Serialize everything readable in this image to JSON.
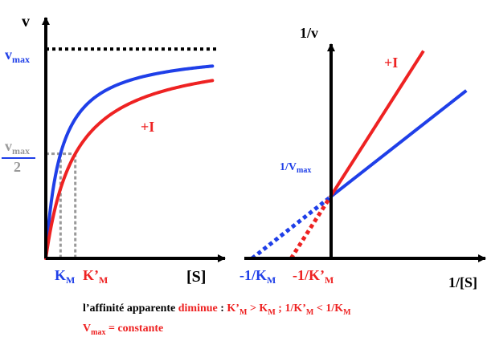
{
  "colors": {
    "inhibited": "#ee2222",
    "uninhibited": "#1f3fe8",
    "guide": "#999999",
    "axis": "#000000"
  },
  "chart_data": [
    {
      "type": "line",
      "title": "",
      "xlabel": "[S]",
      "ylabel": "v",
      "vmax_label": {
        "base": "v",
        "sub": "max"
      },
      "half_vmax_label": {
        "num_base": "v",
        "num_sub": "max",
        "den": "2"
      },
      "km_label": {
        "base": "K",
        "sub": "M"
      },
      "km_prime_label": {
        "base": "K’",
        "sub": "M"
      },
      "annotation": "+I",
      "vmax": 1.0,
      "km": 1.0,
      "km_prime": 2.0,
      "xlim": [
        0,
        11.5
      ],
      "ylim": [
        0,
        1.15
      ],
      "series": [
        {
          "color": "#1f3fe8",
          "km": 1.0,
          "vmax": 1.0,
          "x_end": 11.3
        },
        {
          "color": "#ee2222",
          "km": 2.0,
          "vmax": 1.0,
          "x_end": 11.3
        }
      ]
    },
    {
      "type": "line",
      "title": "",
      "xlabel": "1/[S]",
      "ylabel": "1/v",
      "yint_label": {
        "base": "1/V",
        "sub": "max"
      },
      "neg_inv_km_label": {
        "base": "-1/K",
        "sub": "M"
      },
      "neg_inv_km_prime_label": {
        "base": "-1/K’",
        "sub": "M"
      },
      "annotation": "+I",
      "y_intercept": 1.0,
      "xlim": [
        -1.1,
        1.85
      ],
      "ylim": [
        0,
        4.05
      ],
      "series": [
        {
          "color": "#1f3fe8",
          "slope": 1.0,
          "x_range": [
            -1.0,
            1.75
          ],
          "dashed_until": 0
        },
        {
          "color": "#ee2222",
          "slope": 2.0,
          "x_range": [
            -0.5,
            1.2
          ],
          "dashed_until": 0
        }
      ]
    }
  ],
  "caption": {
    "line1": {
      "prefix": "l’affinité apparente ",
      "verb": "diminue",
      "colon": " : ",
      "cmp1_a": {
        "base": "K’",
        "sub": "M"
      },
      "cmp1_op": " > ",
      "cmp1_b": {
        "base": "K",
        "sub": "M"
      },
      "sep": " ; ",
      "cmp2_a": {
        "base": "1/K’",
        "sub": "M"
      },
      "cmp2_op": " < ",
      "cmp2_b": {
        "base": "1/K",
        "sub": "M"
      }
    },
    "line2": {
      "var": {
        "base": "V",
        "sub": "max"
      },
      "eq": " = ",
      "value": "constante"
    }
  }
}
